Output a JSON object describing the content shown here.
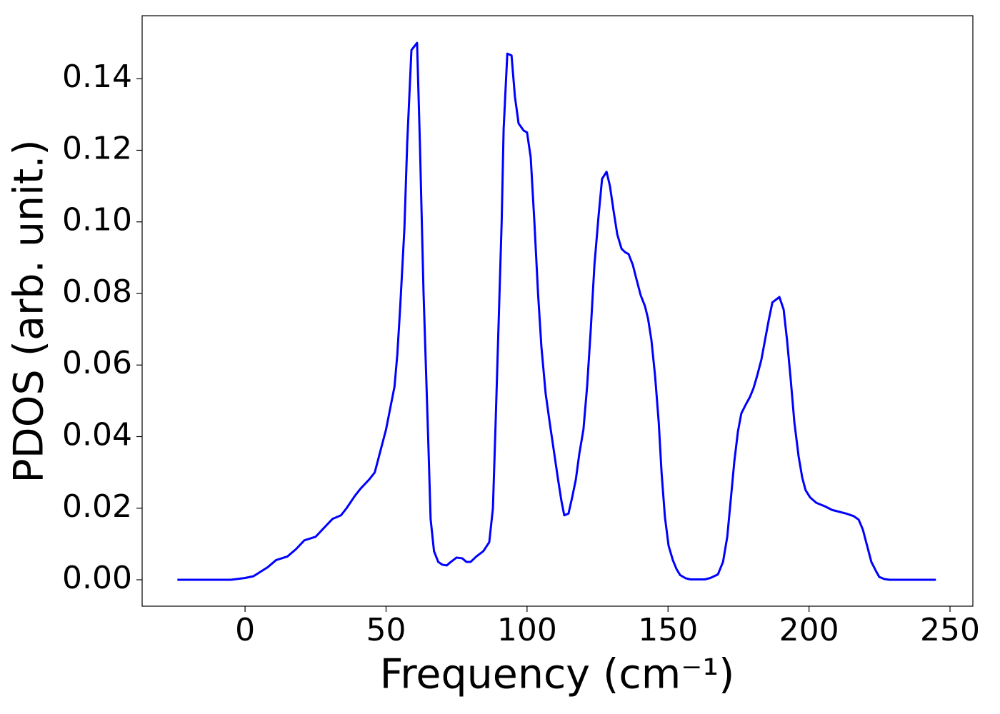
{
  "chart_data": {
    "type": "line",
    "xlabel": "Frequency (cm⁻¹)",
    "ylabel": "PDOS (arb. unit.)",
    "x": [
      -24,
      -5,
      0,
      3,
      5,
      8,
      11,
      13,
      15,
      18,
      21,
      23,
      25,
      28,
      31,
      34,
      36,
      39,
      41,
      44,
      46,
      48,
      50,
      51.5,
      53,
      54,
      55,
      56.5,
      57.5,
      59,
      61,
      62,
      63.3,
      65,
      65.8,
      67,
      68.5,
      70,
      71.5,
      73,
      75,
      77,
      78.5,
      80,
      82,
      84.5,
      86.6,
      87.9,
      88.9,
      91,
      91.7,
      93,
      94.5,
      95.7,
      97,
      98.8,
      100,
      101.3,
      102.6,
      103.9,
      105.1,
      106.6,
      108.2,
      109.7,
      111,
      112.2,
      113.2,
      114.7,
      116,
      117.3,
      118.5,
      120,
      121.3,
      122.6,
      123.9,
      125.4,
      126.6,
      128.2,
      129.4,
      130.7,
      132,
      133.5,
      134.8,
      136,
      137.5,
      138.8,
      140.3,
      141.8,
      142.9,
      144.1,
      145.4,
      146.7,
      147.7,
      148.9,
      150.2,
      151.7,
      153,
      154.3,
      156.3,
      158,
      163,
      165,
      167.7,
      169.5,
      171,
      172.2,
      173.5,
      174.8,
      176,
      177.6,
      179,
      180.3,
      181.6,
      183.1,
      184.4,
      185.7,
      187,
      189.5,
      191,
      192.2,
      193.5,
      194.8,
      196.3,
      197.6,
      198.8,
      200.4,
      202.6,
      205.7,
      208.2,
      210.7,
      213.2,
      215.8,
      217.6,
      219.1,
      220.6,
      222.1,
      223.7,
      224.9,
      226.7,
      228.5,
      245
    ],
    "series": [
      {
        "name": "PDOS",
        "color": "#0000ff",
        "values": [
          0,
          0,
          0.0005,
          0.001,
          0.002,
          0.0035,
          0.0055,
          0.006,
          0.0065,
          0.0085,
          0.011,
          0.0115,
          0.012,
          0.0145,
          0.017,
          0.018,
          0.02,
          0.0235,
          0.0255,
          0.028,
          0.03,
          0.036,
          0.042,
          0.048,
          0.054,
          0.063,
          0.076,
          0.098,
          0.122,
          0.148,
          0.15,
          0.122,
          0.08,
          0.038,
          0.017,
          0.008,
          0.005,
          0.0042,
          0.004,
          0.005,
          0.0062,
          0.006,
          0.005,
          0.005,
          0.0065,
          0.008,
          0.0105,
          0.02,
          0.045,
          0.1,
          0.126,
          0.147,
          0.1465,
          0.135,
          0.1275,
          0.1255,
          0.125,
          0.118,
          0.1,
          0.08,
          0.065,
          0.052,
          0.043,
          0.035,
          0.028,
          0.022,
          0.018,
          0.0185,
          0.023,
          0.028,
          0.035,
          0.042,
          0.054,
          0.07,
          0.088,
          0.102,
          0.112,
          0.114,
          0.11,
          0.103,
          0.0965,
          0.0925,
          0.0915,
          0.091,
          0.088,
          0.084,
          0.0795,
          0.0765,
          0.073,
          0.067,
          0.057,
          0.044,
          0.03,
          0.0175,
          0.0095,
          0.0055,
          0.003,
          0.0013,
          0.0004,
          0.0001,
          0.0001,
          0.0005,
          0.0015,
          0.005,
          0.012,
          0.022,
          0.033,
          0.0415,
          0.0465,
          0.049,
          0.051,
          0.0535,
          0.057,
          0.0615,
          0.067,
          0.0725,
          0.0775,
          0.079,
          0.0755,
          0.067,
          0.056,
          0.044,
          0.0345,
          0.0285,
          0.025,
          0.023,
          0.0215,
          0.0205,
          0.0195,
          0.019,
          0.0185,
          0.0178,
          0.0168,
          0.014,
          0.0095,
          0.005,
          0.0025,
          0.0008,
          0.0002,
          0,
          0
        ]
      }
    ],
    "xlim": [
      -36.5,
      258.1
    ],
    "ylim": [
      -0.00738,
      0.1576
    ],
    "xticks": [
      0,
      50,
      100,
      150,
      200,
      250
    ],
    "yticks": [
      {
        "value": 0,
        "label": "0.00"
      },
      {
        "value": 0.02,
        "label": "0.02"
      },
      {
        "value": 0.04,
        "label": "0.04"
      },
      {
        "value": 0.06,
        "label": "0.06"
      },
      {
        "value": 0.08,
        "label": "0.08"
      },
      {
        "value": 0.1,
        "label": "0.10"
      },
      {
        "value": 0.12,
        "label": "0.12"
      },
      {
        "value": 0.14,
        "label": "0.14"
      }
    ],
    "grid": false
  }
}
